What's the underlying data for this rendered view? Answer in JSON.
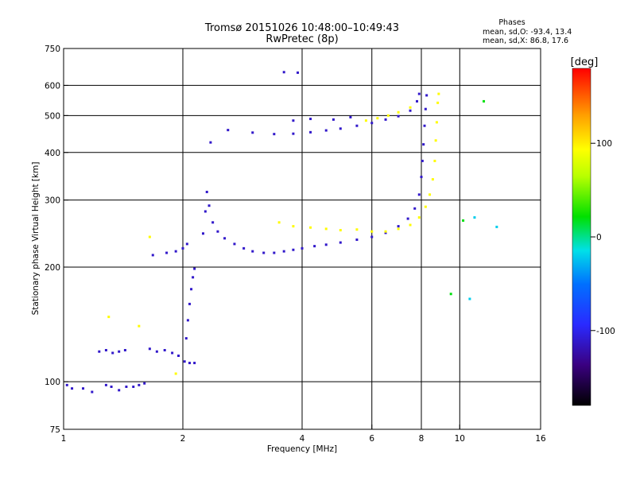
{
  "header": {
    "title_line1": "Tromsø 20151026 10:48:00–10:49:43",
    "title_line2": "RwPretec (8p)"
  },
  "stats": {
    "title": "Phases",
    "line_O": "mean, sd,O: -93.4, 13.4",
    "line_X": "mean, sd,X: 86.8, 17.6"
  },
  "colorbar": {
    "label": "[deg]",
    "range": [
      -180,
      180
    ],
    "ticks": [
      {
        "value": 100,
        "label": "100"
      },
      {
        "value": 0,
        "label": "0"
      },
      {
        "value": -100,
        "label": "-100"
      }
    ]
  },
  "chart_data": {
    "type": "scatter",
    "title": "Tromsø 20151026 10:48:00–10:49:43 RwPretec (8p)",
    "xlabel": "Frequency [MHz]",
    "ylabel": "Stationary phase Virtual Height [km]",
    "x_scale": "log",
    "y_scale": "log",
    "xlim": [
      1,
      16
    ],
    "ylim": [
      75,
      750
    ],
    "x_ticks": [
      {
        "value": 1,
        "label": "1"
      },
      {
        "value": 2,
        "label": "2"
      },
      {
        "value": 4,
        "label": "4"
      },
      {
        "value": 6,
        "label": "6"
      },
      {
        "value": 8,
        "label": "8"
      },
      {
        "value": 10,
        "label": "10"
      },
      {
        "value": 16,
        "label": "16"
      }
    ],
    "y_ticks": [
      {
        "value": 75,
        "label": "75"
      },
      {
        "value": 100,
        "label": "100"
      },
      {
        "value": 200,
        "label": "200"
      },
      {
        "value": 300,
        "label": "300"
      },
      {
        "value": 400,
        "label": "400"
      },
      {
        "value": 500,
        "label": "500"
      },
      {
        "value": 600,
        "label": "600"
      },
      {
        "value": 750,
        "label": "750"
      }
    ],
    "grid_x": [
      2,
      4,
      6,
      8,
      10
    ],
    "grid_y": [
      100,
      200,
      300,
      400,
      500,
      600
    ],
    "color_by": "phase_deg",
    "series": [
      {
        "phase_deg": -112,
        "points": [
          [
            1.02,
            98
          ],
          [
            1.05,
            96
          ],
          [
            1.12,
            96
          ],
          [
            1.18,
            94
          ],
          [
            1.28,
            98
          ],
          [
            1.32,
            97
          ],
          [
            1.38,
            95
          ],
          [
            1.44,
            97
          ],
          [
            1.5,
            97
          ],
          [
            1.55,
            98
          ],
          [
            1.6,
            99
          ],
          [
            1.23,
            120
          ],
          [
            1.28,
            121
          ],
          [
            1.33,
            119
          ],
          [
            1.38,
            120
          ],
          [
            1.43,
            121
          ],
          [
            1.65,
            122
          ],
          [
            1.72,
            120
          ],
          [
            1.8,
            121
          ],
          [
            1.88,
            119
          ],
          [
            1.95,
            117
          ],
          [
            2.02,
            113
          ],
          [
            2.08,
            112
          ],
          [
            2.14,
            112
          ],
          [
            2.04,
            130
          ],
          [
            2.06,
            145
          ],
          [
            2.08,
            160
          ],
          [
            2.1,
            175
          ],
          [
            2.12,
            188
          ],
          [
            2.14,
            198
          ],
          [
            1.68,
            215
          ],
          [
            1.82,
            218
          ],
          [
            1.92,
            220
          ],
          [
            2.0,
            224
          ],
          [
            2.05,
            230
          ],
          [
            2.25,
            245
          ],
          [
            2.28,
            280
          ],
          [
            2.3,
            315
          ],
          [
            2.33,
            290
          ],
          [
            2.38,
            262
          ],
          [
            2.45,
            248
          ],
          [
            2.55,
            238
          ],
          [
            2.7,
            230
          ],
          [
            2.85,
            224
          ],
          [
            3.0,
            220
          ],
          [
            3.2,
            218
          ],
          [
            3.4,
            218
          ],
          [
            3.6,
            220
          ],
          [
            3.8,
            222
          ],
          [
            4.0,
            224
          ],
          [
            4.3,
            227
          ],
          [
            4.6,
            229
          ],
          [
            5.0,
            232
          ],
          [
            5.5,
            236
          ],
          [
            6.0,
            240
          ],
          [
            6.5,
            246
          ],
          [
            7.0,
            256
          ],
          [
            7.4,
            268
          ],
          [
            7.7,
            285
          ],
          [
            7.9,
            310
          ],
          [
            8.0,
            345
          ],
          [
            8.05,
            380
          ],
          [
            8.1,
            420
          ],
          [
            8.15,
            470
          ],
          [
            8.2,
            520
          ],
          [
            8.25,
            565
          ],
          [
            2.35,
            425
          ],
          [
            2.6,
            458
          ],
          [
            3.0,
            451
          ],
          [
            3.4,
            447
          ],
          [
            3.8,
            448
          ],
          [
            4.2,
            452
          ],
          [
            4.6,
            457
          ],
          [
            5.0,
            462
          ],
          [
            5.5,
            470
          ],
          [
            6.0,
            478
          ],
          [
            6.5,
            488
          ],
          [
            7.0,
            498
          ],
          [
            7.5,
            515
          ],
          [
            7.8,
            545
          ],
          [
            7.9,
            570
          ],
          [
            3.8,
            485
          ],
          [
            4.2,
            490
          ],
          [
            4.8,
            488
          ],
          [
            5.3,
            495
          ],
          [
            3.6,
            650
          ],
          [
            3.9,
            648
          ]
        ]
      },
      {
        "phase_deg": 95,
        "points": [
          [
            3.5,
            262
          ],
          [
            3.8,
            256
          ],
          [
            4.2,
            254
          ],
          [
            4.6,
            252
          ],
          [
            5.0,
            250
          ],
          [
            5.5,
            251
          ],
          [
            6.0,
            248
          ],
          [
            6.5,
            248
          ],
          [
            7.0,
            252
          ],
          [
            7.5,
            258
          ],
          [
            7.9,
            270
          ],
          [
            8.2,
            288
          ],
          [
            8.4,
            310
          ],
          [
            8.55,
            340
          ],
          [
            8.65,
            380
          ],
          [
            8.7,
            430
          ],
          [
            8.75,
            480
          ],
          [
            8.8,
            540
          ],
          [
            8.85,
            570
          ],
          [
            5.8,
            485
          ],
          [
            6.2,
            492
          ],
          [
            6.6,
            500
          ],
          [
            7.0,
            510
          ],
          [
            7.5,
            525
          ],
          [
            1.3,
            148
          ],
          [
            1.55,
            140
          ],
          [
            1.65,
            240
          ],
          [
            1.92,
            105
          ]
        ]
      },
      {
        "phase_deg": 20,
        "points": [
          [
            9.5,
            170
          ],
          [
            10.2,
            265
          ],
          [
            11.5,
            545
          ]
        ]
      },
      {
        "phase_deg": -20,
        "points": [
          [
            10.9,
            270
          ],
          [
            12.4,
            255
          ],
          [
            10.6,
            165
          ]
        ]
      }
    ]
  }
}
